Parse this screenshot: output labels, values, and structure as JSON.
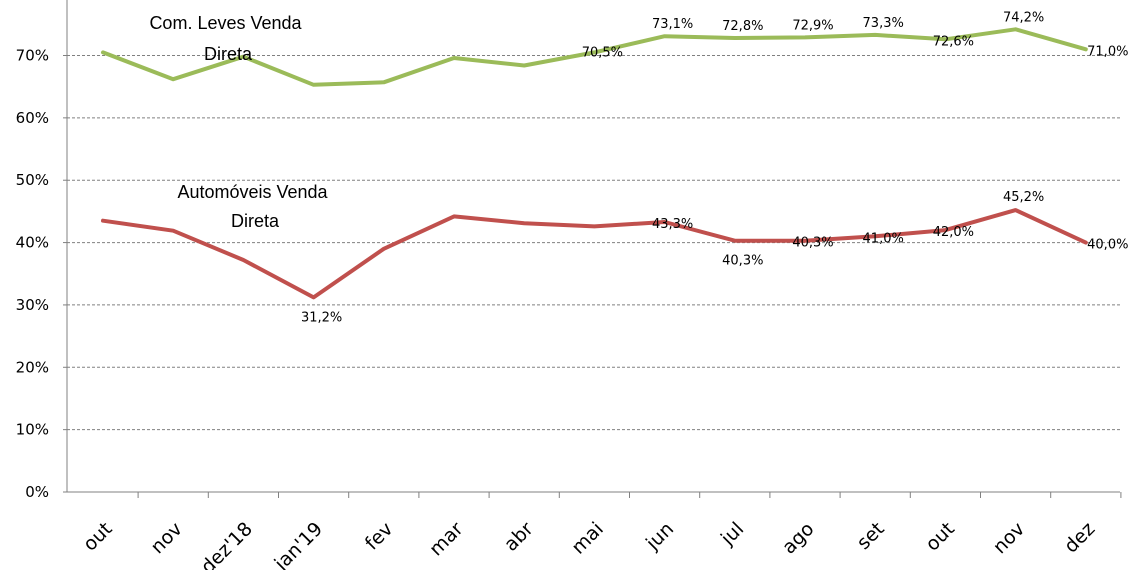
{
  "chart_data": {
    "type": "line",
    "categories": [
      "out",
      "nov",
      "dez'18",
      "jan'19",
      "fev",
      "mar",
      "abr",
      "mai",
      "jun",
      "jul",
      "ago",
      "set",
      "out",
      "nov",
      "dez"
    ],
    "ylim": [
      0,
      75
    ],
    "yticks": [
      "0%",
      "10%",
      "20%",
      "30%",
      "40%",
      "50%",
      "60%",
      "70%"
    ],
    "grid": true,
    "series": [
      {
        "name": "Com. Leves Venda Direta",
        "color": "#9bbb59",
        "values": [
          70.5,
          66.2,
          69.8,
          65.3,
          65.7,
          69.6,
          68.4,
          70.5,
          73.1,
          72.8,
          72.9,
          73.3,
          72.6,
          74.2,
          71.0
        ],
        "labels": [
          "",
          "",
          "",
          "",
          "",
          "",
          "",
          "70,5%",
          "73,1%",
          "72,8%",
          "72,9%",
          "73,3%",
          "72,6%",
          "74,2%",
          "71,0%"
        ]
      },
      {
        "name": "Automóveis Venda Direta",
        "color": "#c0504d",
        "values": [
          43.5,
          41.9,
          37.2,
          31.2,
          39.0,
          44.2,
          43.1,
          42.6,
          43.3,
          40.3,
          40.3,
          41.0,
          42.0,
          45.2,
          40.0
        ],
        "labels": [
          "",
          "",
          "",
          "31,2%",
          "",
          "",
          "",
          "",
          "43,3%",
          "40,3%",
          "40,3%",
          "41,0%",
          "42,0%",
          "45,2%",
          "40,0%"
        ]
      }
    ]
  }
}
